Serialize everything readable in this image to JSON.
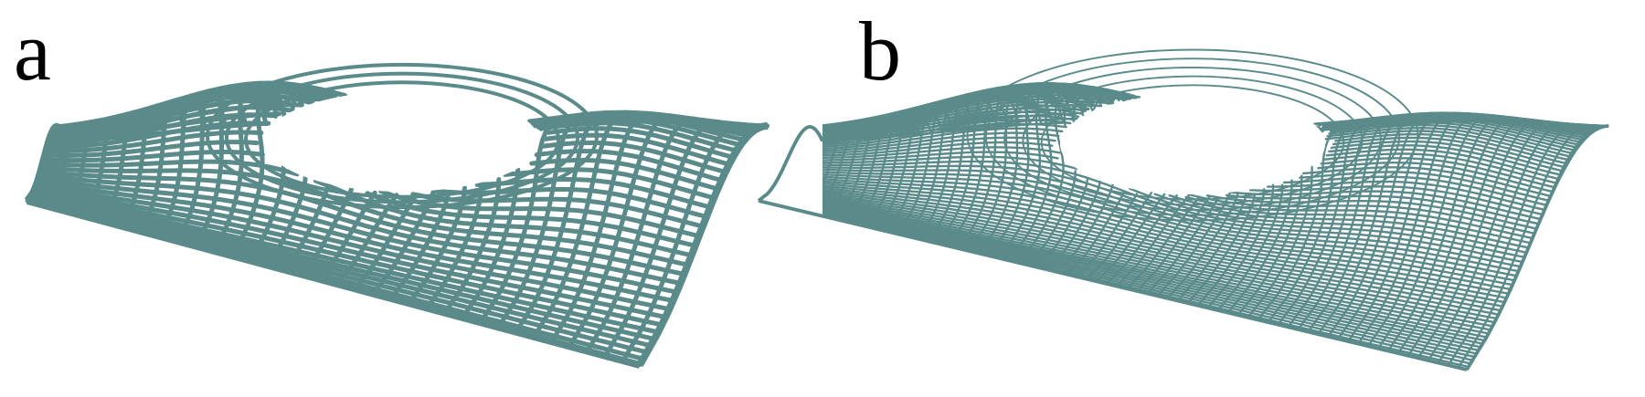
{
  "panels": [
    {
      "label": "a",
      "density": "coarse",
      "stroke_color": "#5a8a8a"
    },
    {
      "label": "b",
      "density": "fine",
      "stroke_color": "#5a8a8a"
    }
  ],
  "colors": {
    "structure": "#5a8a8a",
    "background": "#ffffff",
    "label": "#000000"
  }
}
